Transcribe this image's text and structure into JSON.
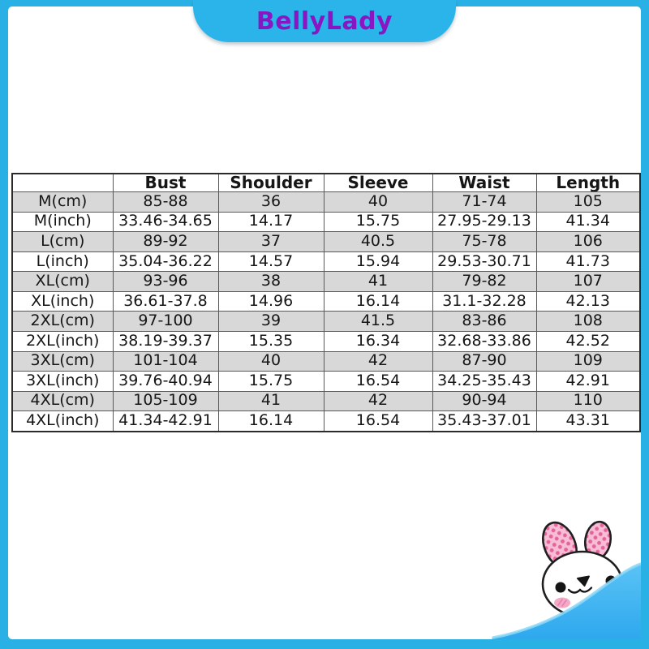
{
  "brand": {
    "name": "BellyLady"
  },
  "colors": {
    "frame_cyan": "#29b1e6",
    "brand_tab_cyan": "#2ab4e9",
    "brand_text_purple": "#8a15c3",
    "shaded_row_gray": "#d8d8d8",
    "table_border": "#595959",
    "wave_blue_top": "#5ac3f5",
    "wave_blue_bottom": "#2ea8ee",
    "ear_pink": "#f8bcd4",
    "ear_dot_pink": "#e2649d"
  },
  "chart_data": {
    "type": "table",
    "columns": [
      "",
      "Bust",
      "Shoulder",
      "Sleeve",
      "Waist",
      "Length"
    ],
    "rows": [
      {
        "label": "M(cm)",
        "values": [
          "85-88",
          "36",
          "40",
          "71-74",
          "105"
        ],
        "shaded": true
      },
      {
        "label": "M(inch)",
        "values": [
          "33.46-34.65",
          "14.17",
          "15.75",
          "27.95-29.13",
          "41.34"
        ],
        "shaded": false
      },
      {
        "label": "L(cm)",
        "values": [
          "89-92",
          "37",
          "40.5",
          "75-78",
          "106"
        ],
        "shaded": true
      },
      {
        "label": "L(inch)",
        "values": [
          "35.04-36.22",
          "14.57",
          "15.94",
          "29.53-30.71",
          "41.73"
        ],
        "shaded": false
      },
      {
        "label": "XL(cm)",
        "values": [
          "93-96",
          "38",
          "41",
          "79-82",
          "107"
        ],
        "shaded": true
      },
      {
        "label": "XL(inch)",
        "values": [
          "36.61-37.8",
          "14.96",
          "16.14",
          "31.1-32.28",
          "42.13"
        ],
        "shaded": false
      },
      {
        "label": "2XL(cm)",
        "values": [
          "97-100",
          "39",
          "41.5",
          "83-86",
          "108"
        ],
        "shaded": true
      },
      {
        "label": "2XL(inch)",
        "values": [
          "38.19-39.37",
          "15.35",
          "16.34",
          "32.68-33.86",
          "42.52"
        ],
        "shaded": false
      },
      {
        "label": "3XL(cm)",
        "values": [
          "101-104",
          "40",
          "42",
          "87-90",
          "109"
        ],
        "shaded": true
      },
      {
        "label": "3XL(inch)",
        "values": [
          "39.76-40.94",
          "15.75",
          "16.54",
          "34.25-35.43",
          "42.91"
        ],
        "shaded": false
      },
      {
        "label": "4XL(cm)",
        "values": [
          "105-109",
          "41",
          "42",
          "90-94",
          "110"
        ],
        "shaded": true
      },
      {
        "label": "4XL(inch)",
        "values": [
          "41.34-42.91",
          "16.14",
          "16.54",
          "35.43-37.01",
          "43.31"
        ],
        "shaded": false
      }
    ]
  },
  "icons": {
    "mascot": "bunny-icon"
  }
}
